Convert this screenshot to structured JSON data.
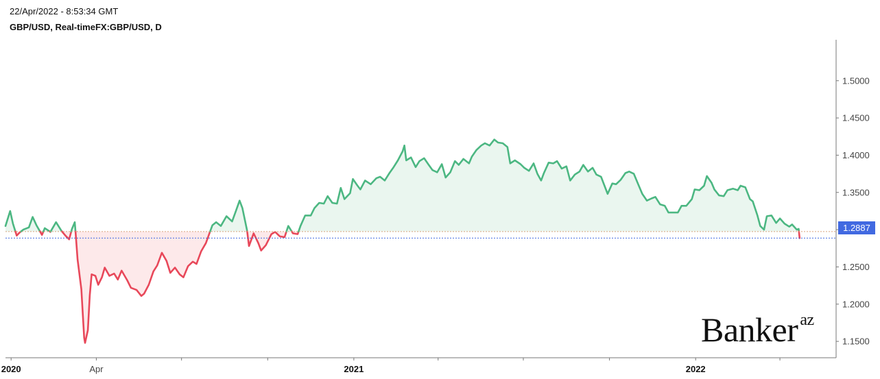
{
  "header": {
    "timestamp": "22/Apr/2022 - 8:53:34 GMT",
    "symbol": "GBP/USD, Real-timeFX:GBP/USD, D"
  },
  "watermark": {
    "brand": "Banker",
    "suffix": "az"
  },
  "colors": {
    "up": "#4cb782",
    "down": "#e8485a",
    "up_fill": "#eaf6ef",
    "down_fill": "#fde9ea",
    "last": "#4169e1"
  },
  "chart_data": {
    "type": "area",
    "title": "GBP/USD, Real-timeFX:GBP/USD, D",
    "baseline": 1.2975,
    "last_value": 1.2887,
    "last_label": "1.2887",
    "ylim": [
      1.128,
      1.555
    ],
    "y_ticks": [
      "1.1500",
      "1.2000",
      "1.2500",
      "1.3000",
      "1.3500",
      "1.4000",
      "1.4500",
      "1.5000"
    ],
    "y_tick_values": [
      1.15,
      1.2,
      1.25,
      1.3,
      1.35,
      1.4,
      1.45,
      1.5
    ],
    "x_labels": [
      "2020",
      "Apr",
      "2021",
      "2022"
    ],
    "x_label_dates": [
      "2020-01-01",
      "2020-04-01",
      "2021-01-01",
      "2022-01-01"
    ],
    "xlim": [
      "2019-12-26",
      "2022-05-31"
    ],
    "grid": false,
    "series": [
      {
        "points": [
          [
            "2019-12-26",
            1.305
          ],
          [
            "2019-12-31",
            1.325
          ],
          [
            "2020-01-03",
            1.308
          ],
          [
            "2020-01-07",
            1.292
          ],
          [
            "2020-01-10",
            1.296
          ],
          [
            "2020-01-14",
            1.3
          ],
          [
            "2020-01-20",
            1.303
          ],
          [
            "2020-01-24",
            1.317
          ],
          [
            "2020-01-28",
            1.306
          ],
          [
            "2020-02-03",
            1.293
          ],
          [
            "2020-02-06",
            1.302
          ],
          [
            "2020-02-12",
            1.297
          ],
          [
            "2020-02-18",
            1.31
          ],
          [
            "2020-02-24",
            1.298
          ],
          [
            "2020-02-28",
            1.292
          ],
          [
            "2020-03-03",
            1.287
          ],
          [
            "2020-03-06",
            1.301
          ],
          [
            "2020-03-09",
            1.31
          ],
          [
            "2020-03-12",
            1.26
          ],
          [
            "2020-03-16",
            1.22
          ],
          [
            "2020-03-19",
            1.155
          ],
          [
            "2020-03-20",
            1.148
          ],
          [
            "2020-03-23",
            1.165
          ],
          [
            "2020-03-25",
            1.212
          ],
          [
            "2020-03-27",
            1.24
          ],
          [
            "2020-03-31",
            1.238
          ],
          [
            "2020-04-03",
            1.226
          ],
          [
            "2020-04-07",
            1.236
          ],
          [
            "2020-04-10",
            1.249
          ],
          [
            "2020-04-15",
            1.238
          ],
          [
            "2020-04-20",
            1.241
          ],
          [
            "2020-04-24",
            1.233
          ],
          [
            "2020-04-28",
            1.245
          ],
          [
            "2020-05-04",
            1.232
          ],
          [
            "2020-05-08",
            1.222
          ],
          [
            "2020-05-14",
            1.219
          ],
          [
            "2020-05-19",
            1.211
          ],
          [
            "2020-05-22",
            1.214
          ],
          [
            "2020-05-27",
            1.226
          ],
          [
            "2020-06-01",
            1.244
          ],
          [
            "2020-06-05",
            1.252
          ],
          [
            "2020-06-10",
            1.269
          ],
          [
            "2020-06-15",
            1.258
          ],
          [
            "2020-06-19",
            1.242
          ],
          [
            "2020-06-24",
            1.249
          ],
          [
            "2020-06-29",
            1.24
          ],
          [
            "2020-07-03",
            1.236
          ],
          [
            "2020-07-08",
            1.251
          ],
          [
            "2020-07-13",
            1.257
          ],
          [
            "2020-07-17",
            1.254
          ],
          [
            "2020-07-22",
            1.271
          ],
          [
            "2020-07-27",
            1.282
          ],
          [
            "2020-08-03",
            1.306
          ],
          [
            "2020-08-07",
            1.31
          ],
          [
            "2020-08-12",
            1.305
          ],
          [
            "2020-08-18",
            1.318
          ],
          [
            "2020-08-24",
            1.311
          ],
          [
            "2020-08-28",
            1.325
          ],
          [
            "2020-09-01",
            1.339
          ],
          [
            "2020-09-04",
            1.329
          ],
          [
            "2020-09-09",
            1.299
          ],
          [
            "2020-09-11",
            1.278
          ],
          [
            "2020-09-16",
            1.295
          ],
          [
            "2020-09-21",
            1.282
          ],
          [
            "2020-09-24",
            1.272
          ],
          [
            "2020-09-29",
            1.279
          ],
          [
            "2020-10-05",
            1.294
          ],
          [
            "2020-10-09",
            1.297
          ],
          [
            "2020-10-14",
            1.291
          ],
          [
            "2020-10-19",
            1.29
          ],
          [
            "2020-10-23",
            1.305
          ],
          [
            "2020-10-28",
            1.295
          ],
          [
            "2020-11-02",
            1.294
          ],
          [
            "2020-11-05",
            1.305
          ],
          [
            "2020-11-10",
            1.319
          ],
          [
            "2020-11-16",
            1.319
          ],
          [
            "2020-11-20",
            1.329
          ],
          [
            "2020-11-25",
            1.336
          ],
          [
            "2020-11-30",
            1.335
          ],
          [
            "2020-12-04",
            1.345
          ],
          [
            "2020-12-09",
            1.336
          ],
          [
            "2020-12-14",
            1.335
          ],
          [
            "2020-12-18",
            1.356
          ],
          [
            "2020-12-22",
            1.341
          ],
          [
            "2020-12-28",
            1.349
          ],
          [
            "2020-12-31",
            1.368
          ],
          [
            "2021-01-05",
            1.359
          ],
          [
            "2021-01-08",
            1.354
          ],
          [
            "2021-01-13",
            1.366
          ],
          [
            "2021-01-19",
            1.361
          ],
          [
            "2021-01-25",
            1.369
          ],
          [
            "2021-01-29",
            1.371
          ],
          [
            "2021-02-03",
            1.366
          ],
          [
            "2021-02-08",
            1.376
          ],
          [
            "2021-02-12",
            1.383
          ],
          [
            "2021-02-17",
            1.393
          ],
          [
            "2021-02-22",
            1.405
          ],
          [
            "2021-02-24",
            1.413
          ],
          [
            "2021-02-26",
            1.393
          ],
          [
            "2021-03-03",
            1.397
          ],
          [
            "2021-03-08",
            1.384
          ],
          [
            "2021-03-12",
            1.392
          ],
          [
            "2021-03-17",
            1.396
          ],
          [
            "2021-03-22",
            1.387
          ],
          [
            "2021-03-26",
            1.38
          ],
          [
            "2021-03-31",
            1.377
          ],
          [
            "2021-04-05",
            1.388
          ],
          [
            "2021-04-09",
            1.37
          ],
          [
            "2021-04-14",
            1.377
          ],
          [
            "2021-04-19",
            1.392
          ],
          [
            "2021-04-23",
            1.387
          ],
          [
            "2021-04-28",
            1.395
          ],
          [
            "2021-05-04",
            1.389
          ],
          [
            "2021-05-07",
            1.398
          ],
          [
            "2021-05-12",
            1.407
          ],
          [
            "2021-05-17",
            1.413
          ],
          [
            "2021-05-21",
            1.416
          ],
          [
            "2021-05-26",
            1.413
          ],
          [
            "2021-05-31",
            1.421
          ],
          [
            "2021-06-04",
            1.417
          ],
          [
            "2021-06-09",
            1.416
          ],
          [
            "2021-06-14",
            1.411
          ],
          [
            "2021-06-17",
            1.389
          ],
          [
            "2021-06-22",
            1.393
          ],
          [
            "2021-06-28",
            1.388
          ],
          [
            "2021-07-02",
            1.383
          ],
          [
            "2021-07-07",
            1.379
          ],
          [
            "2021-07-12",
            1.389
          ],
          [
            "2021-07-16",
            1.375
          ],
          [
            "2021-07-20",
            1.366
          ],
          [
            "2021-07-23",
            1.376
          ],
          [
            "2021-07-28",
            1.39
          ],
          [
            "2021-08-02",
            1.389
          ],
          [
            "2021-08-06",
            1.392
          ],
          [
            "2021-08-11",
            1.382
          ],
          [
            "2021-08-16",
            1.385
          ],
          [
            "2021-08-20",
            1.366
          ],
          [
            "2021-08-25",
            1.374
          ],
          [
            "2021-08-30",
            1.378
          ],
          [
            "2021-09-03",
            1.387
          ],
          [
            "2021-09-08",
            1.378
          ],
          [
            "2021-09-13",
            1.383
          ],
          [
            "2021-09-17",
            1.374
          ],
          [
            "2021-09-22",
            1.371
          ],
          [
            "2021-09-29",
            1.348
          ],
          [
            "2021-10-04",
            1.362
          ],
          [
            "2021-10-08",
            1.361
          ],
          [
            "2021-10-13",
            1.367
          ],
          [
            "2021-10-18",
            1.376
          ],
          [
            "2021-10-22",
            1.378
          ],
          [
            "2021-10-27",
            1.375
          ],
          [
            "2021-11-01",
            1.36
          ],
          [
            "2021-11-05",
            1.348
          ],
          [
            "2021-11-10",
            1.339
          ],
          [
            "2021-11-15",
            1.342
          ],
          [
            "2021-11-19",
            1.344
          ],
          [
            "2021-11-24",
            1.334
          ],
          [
            "2021-11-29",
            1.332
          ],
          [
            "2021-12-03",
            1.323
          ],
          [
            "2021-12-08",
            1.323
          ],
          [
            "2021-12-13",
            1.323
          ],
          [
            "2021-12-17",
            1.332
          ],
          [
            "2021-12-22",
            1.332
          ],
          [
            "2021-12-28",
            1.341
          ],
          [
            "2021-12-31",
            1.354
          ],
          [
            "2022-01-05",
            1.353
          ],
          [
            "2022-01-10",
            1.359
          ],
          [
            "2022-01-13",
            1.372
          ],
          [
            "2022-01-18",
            1.363
          ],
          [
            "2022-01-21",
            1.354
          ],
          [
            "2022-01-26",
            1.346
          ],
          [
            "2022-01-31",
            1.345
          ],
          [
            "2022-02-04",
            1.353
          ],
          [
            "2022-02-10",
            1.355
          ],
          [
            "2022-02-15",
            1.353
          ],
          [
            "2022-02-18",
            1.359
          ],
          [
            "2022-02-23",
            1.357
          ],
          [
            "2022-02-28",
            1.341
          ],
          [
            "2022-03-03",
            1.338
          ],
          [
            "2022-03-08",
            1.319
          ],
          [
            "2022-03-11",
            1.305
          ],
          [
            "2022-03-15",
            1.3
          ],
          [
            "2022-03-18",
            1.318
          ],
          [
            "2022-03-23",
            1.319
          ],
          [
            "2022-03-28",
            1.309
          ],
          [
            "2022-04-01",
            1.315
          ],
          [
            "2022-04-06",
            1.308
          ],
          [
            "2022-04-11",
            1.304
          ],
          [
            "2022-04-14",
            1.307
          ],
          [
            "2022-04-19",
            1.3
          ],
          [
            "2022-04-21",
            1.301
          ],
          [
            "2022-04-22",
            1.2887
          ]
        ]
      }
    ]
  }
}
